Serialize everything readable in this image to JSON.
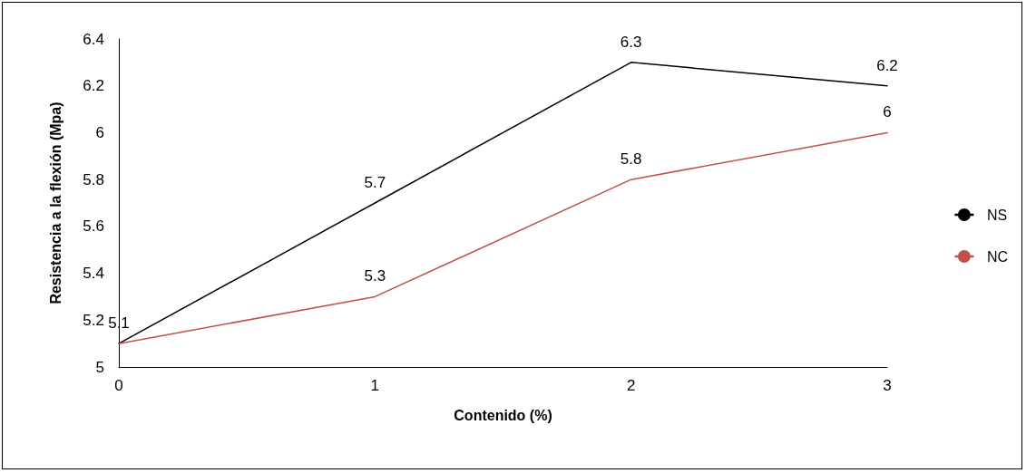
{
  "chart_data": {
    "type": "line",
    "xlabel": "Contenido (%)",
    "ylabel": "Resistencia a la flexión (Mpa)",
    "x": [
      0,
      1,
      2,
      3
    ],
    "xlim": [
      0,
      3
    ],
    "xticks": [
      0,
      1,
      2,
      3
    ],
    "ylim": [
      5,
      6.4
    ],
    "yticks": [
      5,
      5.2,
      5.4,
      5.6,
      5.8,
      6,
      6.2,
      6.4
    ],
    "series": [
      {
        "name": "NS",
        "color": "#000000",
        "values": [
          5.1,
          5.7,
          6.3,
          6.2
        ],
        "value_labels": [
          "5.1",
          "5.7",
          "6.3",
          "6.2"
        ]
      },
      {
        "name": "NC",
        "color": "#c0504d",
        "values": [
          5.1,
          5.3,
          5.8,
          6.0
        ],
        "value_labels": [
          null,
          "5.3",
          "5.8",
          "6"
        ]
      }
    ],
    "grid": false,
    "legend": "right",
    "marker": "none",
    "line_style": "solid"
  }
}
